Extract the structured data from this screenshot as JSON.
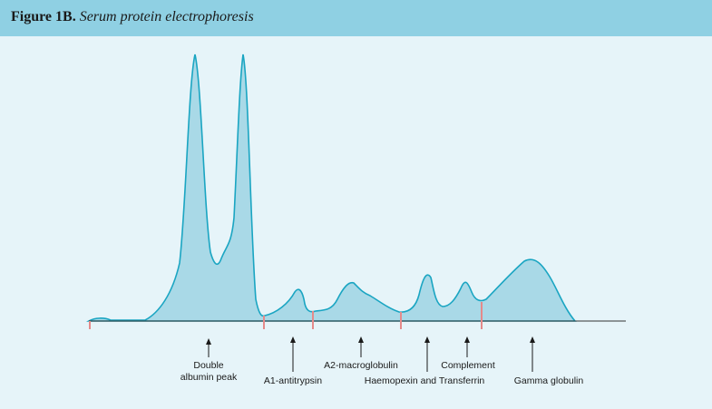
{
  "figure": {
    "label": "Figure 1B.",
    "caption": "Serum protein electrophoresis"
  },
  "colors": {
    "header": "#8fd0e3",
    "background": "#e6f4f9",
    "curve_stroke": "#1aa5c2",
    "curve_fill": "#a9d9e7",
    "divider": "#e58a8a",
    "axis": "#333333"
  },
  "annotations": [
    {
      "id": "albumin",
      "lines": [
        "Double",
        "albumin peak"
      ]
    },
    {
      "id": "a1",
      "lines": [
        "A1-antitrypsin"
      ]
    },
    {
      "id": "a2",
      "lines": [
        "A2-macroglobulin"
      ]
    },
    {
      "id": "haemo",
      "lines": [
        "Haemopexin and Transferrin"
      ]
    },
    {
      "id": "complement",
      "lines": [
        "Complement"
      ]
    },
    {
      "id": "gamma",
      "lines": [
        "Gamma globulin"
      ]
    }
  ]
}
